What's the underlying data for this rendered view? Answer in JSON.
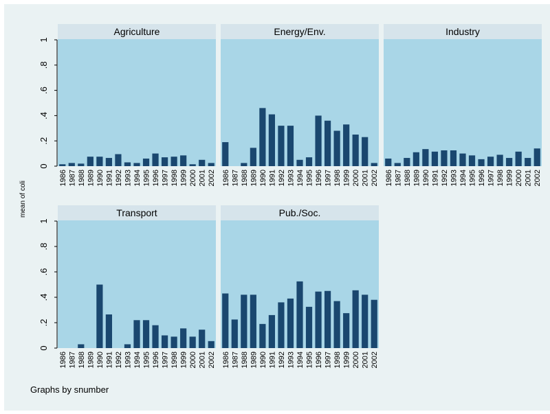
{
  "y_axis": {
    "title": "mean of coli",
    "ylim": [
      0,
      1
    ],
    "yticks": [
      0,
      {
        "value": 0.2,
        "label": ".2"
      },
      {
        "value": 0.4,
        "label": ".4"
      },
      {
        "value": 0.6,
        "label": ".6"
      },
      {
        "value": 0.8,
        "label": ".8"
      },
      1
    ]
  },
  "note": "Graphs by snumber",
  "chart_data": [
    {
      "type": "bar",
      "title": "Agriculture",
      "color": "#1a476f",
      "categories": [
        "1986",
        "1987",
        "1988",
        "1989",
        "1990",
        "1991",
        "1992",
        "1993",
        "1994",
        "1995",
        "1996",
        "1997",
        "1998",
        "1999",
        "2000",
        "2001",
        "2002"
      ],
      "values": [
        0.015,
        0.025,
        0.02,
        0.075,
        0.075,
        0.065,
        0.095,
        0.03,
        0.025,
        0.06,
        0.1,
        0.07,
        0.075,
        0.085,
        0.015,
        0.05,
        0.025
      ]
    },
    {
      "type": "bar",
      "title": "Energy/Env.",
      "color": "#1a476f",
      "categories": [
        "1986",
        "1987",
        "1988",
        "1989",
        "1990",
        "1991",
        "1992",
        "1993",
        "1994",
        "1995",
        "1996",
        "1997",
        "1998",
        "1999",
        "2000",
        "2001",
        "2002"
      ],
      "values": [
        0.19,
        0,
        0.025,
        0.145,
        0.46,
        0.41,
        0.32,
        0.32,
        0.05,
        0.07,
        0.4,
        0.36,
        0.28,
        0.33,
        0.25,
        0.23,
        0.025
      ]
    },
    {
      "type": "bar",
      "title": "Industry",
      "color": "#1a476f",
      "categories": [
        "1986",
        "1987",
        "1988",
        "1989",
        "1990",
        "1991",
        "1992",
        "1993",
        "1994",
        "1995",
        "1996",
        "1997",
        "1998",
        "1999",
        "2000",
        "2001",
        "2002"
      ],
      "values": [
        0.06,
        0.025,
        0.065,
        0.11,
        0.135,
        0.115,
        0.125,
        0.125,
        0.1,
        0.085,
        0.055,
        0.075,
        0.09,
        0.065,
        0.115,
        0.065,
        0.14
      ]
    },
    {
      "type": "bar",
      "title": "Transport",
      "color": "#1a476f",
      "categories": [
        "1986",
        "1987",
        "1988",
        "1989",
        "1990",
        "1991",
        "1992",
        "1993",
        "1994",
        "1995",
        "1996",
        "1997",
        "1998",
        "1999",
        "2000",
        "2001",
        "2002"
      ],
      "values": [
        0,
        0,
        0.03,
        0,
        0.5,
        0.265,
        0,
        0.03,
        0.22,
        0.22,
        0.18,
        0.1,
        0.09,
        0.155,
        0.09,
        0.145,
        0.055
      ]
    },
    {
      "type": "bar",
      "title": "Pub./Soc.",
      "color": "#1a476f",
      "categories": [
        "1986",
        "1987",
        "1988",
        "1989",
        "1990",
        "1991",
        "1992",
        "1993",
        "1994",
        "1995",
        "1996",
        "1997",
        "1998",
        "1999",
        "2000",
        "2001",
        "2002"
      ],
      "values": [
        0.43,
        0.225,
        0.42,
        0.42,
        0.19,
        0.26,
        0.36,
        0.39,
        0.525,
        0.325,
        0.445,
        0.45,
        0.37,
        0.275,
        0.455,
        0.42,
        0.38
      ]
    }
  ]
}
